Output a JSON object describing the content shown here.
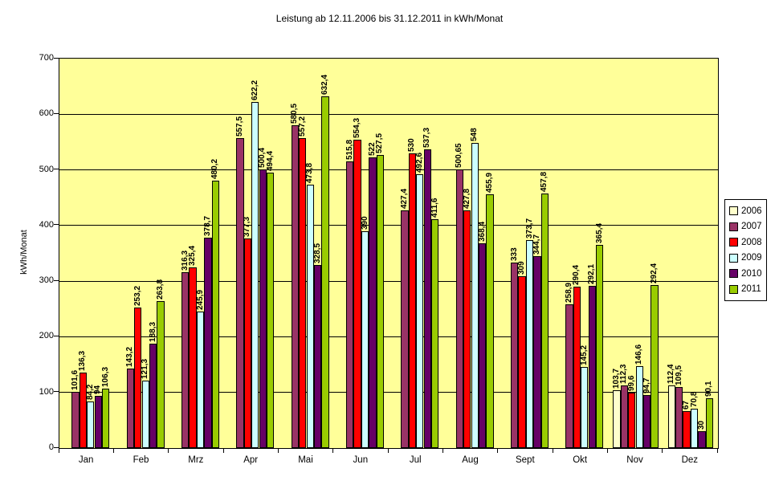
{
  "chart_data": {
    "type": "bar",
    "title": "Leistung ab 12.11.2006 bis 31.12.2011 in kWh/Monat",
    "ylabel": "kWh/Monat",
    "ylim": [
      0,
      700
    ],
    "yticks": [
      0,
      100,
      200,
      300,
      400,
      500,
      600,
      700
    ],
    "grid": "horizontal",
    "legend_position": "right",
    "plot_bg_color": "#FFFF99",
    "axis_color": "#000000",
    "categories": [
      "Jan",
      "Feb",
      "Mrz",
      "Apr",
      "Mai",
      "Jun",
      "Jul",
      "Aug",
      "Sept",
      "Okt",
      "Nov",
      "Dez"
    ],
    "series": [
      {
        "name": "2006",
        "color": "#FFFFCC",
        "values": [
          null,
          null,
          null,
          null,
          null,
          null,
          null,
          null,
          null,
          null,
          103.7,
          112.4
        ]
      },
      {
        "name": "2007",
        "color": "#993366",
        "values": [
          101.6,
          143.2,
          316.3,
          557.5,
          580.5,
          515.8,
          427.4,
          500.65,
          333,
          258.9,
          112.3,
          109.5
        ]
      },
      {
        "name": "2008",
        "color": "#FF0000",
        "values": [
          136.3,
          253.2,
          325.4,
          377.3,
          557.2,
          554.3,
          530,
          427.8,
          309,
          290.4,
          99.6,
          67
        ]
      },
      {
        "name": "2009",
        "color": "#CCFFFF",
        "values": [
          84.2,
          121.3,
          245.9,
          622.2,
          473.8,
          390,
          492.6,
          548,
          373.7,
          145.2,
          146.6,
          70.8
        ]
      },
      {
        "name": "2010",
        "color": "#660066",
        "values": [
          94,
          188.3,
          378.7,
          500.4,
          328.5,
          522,
          537.3,
          368.4,
          344.7,
          292.1,
          94.7,
          30
        ]
      },
      {
        "name": "2011",
        "color": "#99CC00",
        "values": [
          106.3,
          263.8,
          480.2,
          494.4,
          632.4,
          527.5,
          411.6,
          455.9,
          457.8,
          365.4,
          292.4,
          90.1
        ]
      }
    ]
  }
}
